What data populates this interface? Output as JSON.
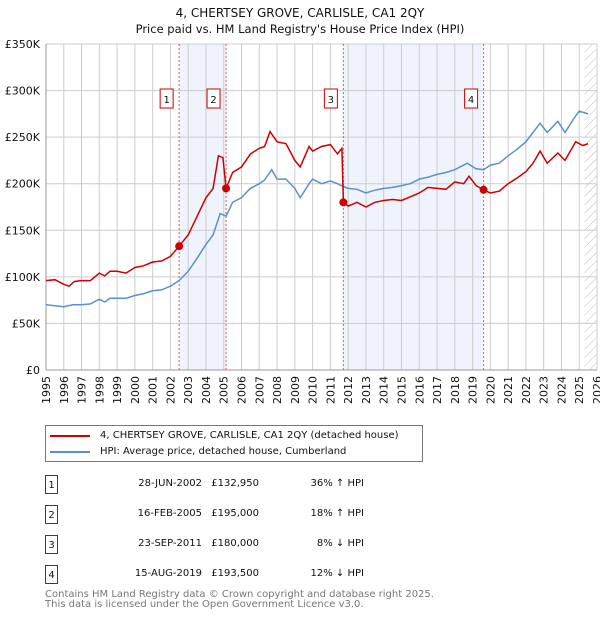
{
  "chart_data": {
    "type": "line",
    "title": "4, CHERTSEY GROVE, CARLISLE, CA1 2QY",
    "subtitle": "Price paid vs. HM Land Registry's House Price Index (HPI)",
    "xlim": [
      1995,
      2026
    ],
    "ylim": [
      0,
      350000
    ],
    "y_ticks": [
      {
        "v": 0,
        "label": "£0"
      },
      {
        "v": 50000,
        "label": "£50K"
      },
      {
        "v": 100000,
        "label": "£100K"
      },
      {
        "v": 150000,
        "label": "£150K"
      },
      {
        "v": 200000,
        "label": "£200K"
      },
      {
        "v": 250000,
        "label": "£250K"
      },
      {
        "v": 300000,
        "label": "£300K"
      },
      {
        "v": 350000,
        "label": "£350K"
      }
    ],
    "x_ticks": [
      "1995",
      "1996",
      "1997",
      "1998",
      "1999",
      "2000",
      "2001",
      "2002",
      "2003",
      "2004",
      "2005",
      "2006",
      "2007",
      "2008",
      "2009",
      "2010",
      "2011",
      "2012",
      "2013",
      "2014",
      "2015",
      "2016",
      "2017",
      "2018",
      "2019",
      "2020",
      "2021",
      "2022",
      "2023",
      "2024",
      "2025",
      "2026"
    ],
    "grid": true,
    "shaded_ranges": [
      [
        2002.49,
        2005.13
      ],
      [
        2011.73,
        2019.62
      ]
    ],
    "hatched_from": 2025.3,
    "colors": {
      "property": "#cc0000",
      "hpi": "#5b8fd0",
      "shade": "#eef3fc",
      "marker_box": "#cc0000"
    },
    "series": [
      {
        "name": "4, CHERTSEY GROVE, CARLISLE, CA1 2QY (detached house)",
        "color": "#cc0000",
        "x": [
          1995,
          1995.5,
          1996,
          1996.3,
          1996.6,
          1997,
          1997.5,
          1998,
          1998.3,
          1998.6,
          1999,
          1999.5,
          2000,
          2000.5,
          2001,
          2001.5,
          2002,
          2002.49,
          2003,
          2003.5,
          2004,
          2004.4,
          2004.7,
          2004.95,
          2005.13,
          2005.5,
          2006,
          2006.5,
          2007,
          2007.3,
          2007.6,
          2008,
          2008.5,
          2009,
          2009.3,
          2009.8,
          2010,
          2010.5,
          2011,
          2011.4,
          2011.65,
          2011.73,
          2012,
          2012.5,
          2013,
          2013.5,
          2014,
          2014.5,
          2015,
          2015.5,
          2016,
          2016.5,
          2017,
          2017.5,
          2018,
          2018.5,
          2018.8,
          2019.2,
          2019.62,
          2020,
          2020.5,
          2021,
          2021.5,
          2022,
          2022.4,
          2022.8,
          2023.2,
          2023.8,
          2024.2,
          2024.8,
          2025.2,
          2025.5
        ],
        "y": [
          96000,
          97000,
          92000,
          90000,
          95000,
          96000,
          96000,
          104000,
          101000,
          106000,
          106000,
          104000,
          110000,
          112000,
          116000,
          117000,
          122000,
          132950,
          145000,
          165000,
          185000,
          195000,
          230000,
          228000,
          195000,
          212000,
          218000,
          232000,
          238000,
          240000,
          256000,
          245000,
          243000,
          225000,
          218000,
          240000,
          235000,
          240000,
          242000,
          232000,
          238000,
          180000,
          176000,
          180000,
          175000,
          180000,
          182000,
          183000,
          182000,
          186000,
          190000,
          196000,
          195000,
          194000,
          202000,
          200000,
          208000,
          198000,
          193500,
          190000,
          192000,
          200000,
          206000,
          213000,
          222000,
          235000,
          222000,
          233000,
          225000,
          245000,
          241000,
          243000
        ]
      },
      {
        "name": "HPI: Average price, detached house, Cumberland",
        "color": "#5b8fd0",
        "x": [
          1995,
          1995.5,
          1996,
          1996.5,
          1997,
          1997.5,
          1998,
          1998.3,
          1998.6,
          1999,
          1999.5,
          2000,
          2000.5,
          2001,
          2001.5,
          2002,
          2002.49,
          2003,
          2003.5,
          2004,
          2004.4,
          2004.8,
          2005.13,
          2005.5,
          2006,
          2006.5,
          2007,
          2007.3,
          2007.7,
          2008,
          2008.5,
          2009,
          2009.3,
          2009.8,
          2010,
          2010.5,
          2011,
          2011.4,
          2011.73,
          2012,
          2012.5,
          2013,
          2013.5,
          2014,
          2014.5,
          2015,
          2015.5,
          2016,
          2016.5,
          2017,
          2017.5,
          2018,
          2018.7,
          2019.2,
          2019.62,
          2020,
          2020.5,
          2021,
          2021.5,
          2022,
          2022.4,
          2022.8,
          2023.2,
          2023.8,
          2024.2,
          2024.7,
          2025,
          2025.5
        ],
        "y": [
          70000,
          69000,
          68000,
          70000,
          70000,
          71000,
          76000,
          73000,
          77000,
          77000,
          77000,
          80000,
          82000,
          85000,
          86000,
          90000,
          96000,
          106000,
          120000,
          135000,
          145000,
          168000,
          165000,
          180000,
          185000,
          195000,
          200000,
          204000,
          215000,
          205000,
          205000,
          195000,
          185000,
          200000,
          205000,
          200000,
          203000,
          200000,
          197000,
          195000,
          194000,
          190000,
          193000,
          195000,
          196000,
          198000,
          200000,
          205000,
          207000,
          210000,
          212000,
          215000,
          222000,
          216000,
          215000,
          220000,
          222000,
          230000,
          237000,
          245000,
          255000,
          265000,
          255000,
          267000,
          255000,
          270000,
          278000,
          275000
        ]
      }
    ],
    "sales": [
      {
        "label": "1",
        "x": 2002.49,
        "y": 132950
      },
      {
        "label": "2",
        "x": 2005.13,
        "y": 195000
      },
      {
        "label": "3",
        "x": 2011.73,
        "y": 180000
      },
      {
        "label": "4",
        "x": 2019.62,
        "y": 193500
      }
    ]
  },
  "legend": {
    "property": "4, CHERTSEY GROVE, CARLISLE, CA1 2QY (detached house)",
    "hpi": "HPI: Average price, detached house, Cumberland"
  },
  "table": [
    {
      "num": "1",
      "date": "28-JUN-2002",
      "price": "£132,950",
      "hpi": "36% ↑ HPI"
    },
    {
      "num": "2",
      "date": "16-FEB-2005",
      "price": "£195,000",
      "hpi": "18% ↑ HPI"
    },
    {
      "num": "3",
      "date": "23-SEP-2011",
      "price": "£180,000",
      "hpi": "8% ↓ HPI"
    },
    {
      "num": "4",
      "date": "15-AUG-2019",
      "price": "£193,500",
      "hpi": "12% ↓ HPI"
    }
  ],
  "footer": {
    "line1": "Contains HM Land Registry data © Crown copyright and database right 2025.",
    "line2": "This data is licensed under the Open Government Licence v3.0."
  }
}
